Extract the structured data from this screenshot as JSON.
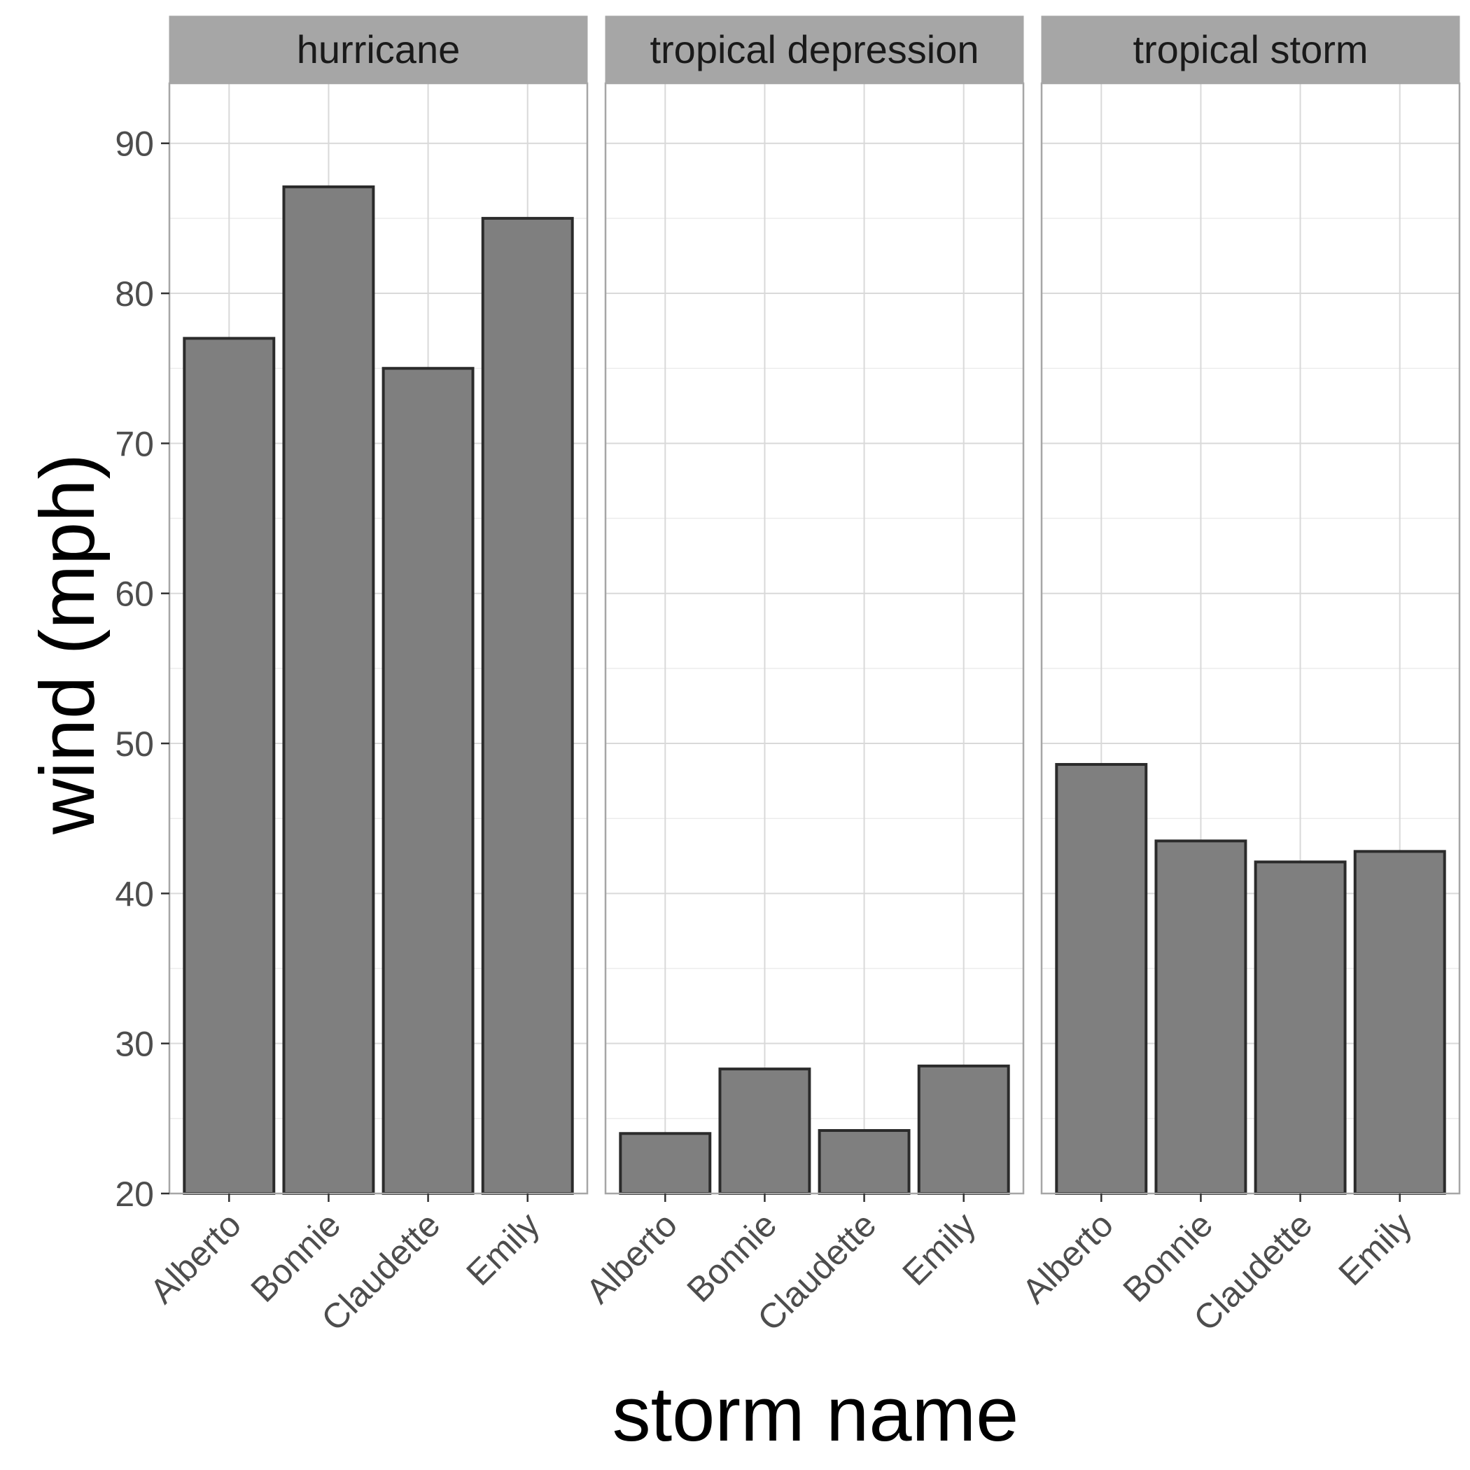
{
  "chart_data": {
    "type": "bar",
    "xlabel": "storm name",
    "ylabel": "wind (mph)",
    "ylim": [
      20,
      94
    ],
    "y_ticks": [
      20,
      30,
      40,
      50,
      60,
      70,
      80,
      90
    ],
    "grid": true,
    "facet_by": "storm status",
    "categories": [
      "Alberto",
      "Bonnie",
      "Claudette",
      "Emily"
    ],
    "facets": [
      {
        "label": "hurricane",
        "values": [
          77,
          87.1,
          75,
          85
        ]
      },
      {
        "label": "tropical depression",
        "values": [
          24,
          28.3,
          24.2,
          28.5
        ]
      },
      {
        "label": "tropical storm",
        "values": [
          48.6,
          43.5,
          42.1,
          42.8
        ]
      }
    ],
    "colors": {
      "bar_fill": "#7f7f7f",
      "bar_stroke": "#2b2b2b",
      "strip_fill": "#a6a6a6",
      "grid_major": "#d9d9d9",
      "grid_minor": "#ececec",
      "panel_border": "#a6a6a6"
    }
  }
}
